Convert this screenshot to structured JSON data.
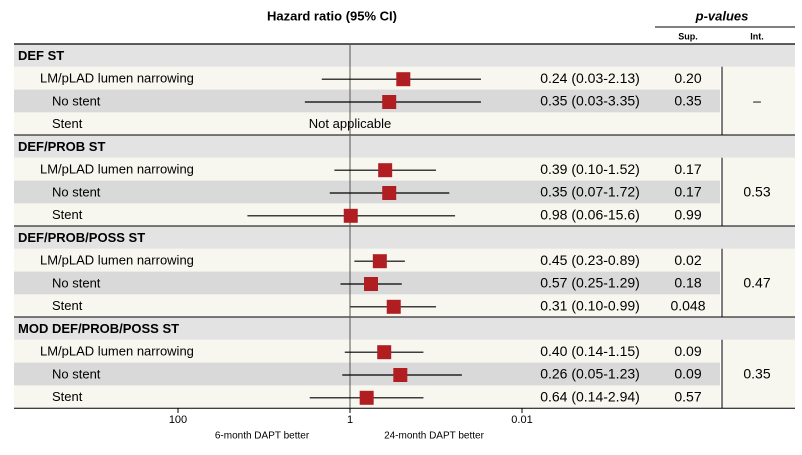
{
  "chart_data": {
    "type": "forest",
    "header": {
      "title": "Hazard ratio (95% CI)",
      "pvalues_title": "p-values",
      "sup": "Sup.",
      "int": "Int."
    },
    "axis": {
      "scale": "log",
      "reversed": true,
      "ticks": [
        {
          "value": 100,
          "label": "100"
        },
        {
          "value": 1,
          "label": "1"
        },
        {
          "value": 0.01,
          "label": "0.01"
        }
      ],
      "left_caption": "6-month DAPT better",
      "right_caption": "24-month DAPT better"
    },
    "groups": [
      {
        "label": "DEF ST",
        "p_int": "–",
        "rows": [
          {
            "label": "LM/pLAD lumen narrowing",
            "hr": 0.24,
            "lo": 0.03,
            "hi": 2.13,
            "text": "0.24 (0.03-2.13)",
            "p_sup": "0.20",
            "shaded": false
          },
          {
            "label": "No stent",
            "hr": 0.35,
            "lo": 0.03,
            "hi": 3.35,
            "text": "0.35 (0.03-3.35)",
            "p_sup": "0.35",
            "shaded": true
          },
          {
            "label": "Stent",
            "hr": null,
            "lo": null,
            "hi": null,
            "text": "",
            "p_sup": "",
            "note": "Not applicable",
            "shaded": false
          }
        ]
      },
      {
        "label": "DEF/PROB ST",
        "p_int": "0.53",
        "rows": [
          {
            "label": "LM/pLAD lumen narrowing",
            "hr": 0.39,
            "lo": 0.1,
            "hi": 1.52,
            "text": "0.39 (0.10-1.52)",
            "p_sup": "0.17",
            "shaded": false
          },
          {
            "label": "No stent",
            "hr": 0.35,
            "lo": 0.07,
            "hi": 1.72,
            "text": "0.35 (0.07-1.72)",
            "p_sup": "0.17",
            "shaded": true
          },
          {
            "label": "Stent",
            "hr": 0.98,
            "lo": 0.06,
            "hi": 15.6,
            "text": "0.98 (0.06-15.6)",
            "p_sup": "0.99",
            "shaded": false
          }
        ]
      },
      {
        "label": "DEF/PROB/POSS ST",
        "p_int": "0.47",
        "rows": [
          {
            "label": "LM/pLAD lumen narrowing",
            "hr": 0.45,
            "lo": 0.23,
            "hi": 0.89,
            "text": "0.45 (0.23-0.89)",
            "p_sup": "0.02",
            "shaded": false
          },
          {
            "label": "No stent",
            "hr": 0.57,
            "lo": 0.25,
            "hi": 1.29,
            "text": "0.57 (0.25-1.29)",
            "p_sup": "0.18",
            "shaded": true
          },
          {
            "label": "Stent",
            "hr": 0.31,
            "lo": 0.1,
            "hi": 0.99,
            "text": "0.31 (0.10-0.99)",
            "p_sup": "0.048",
            "shaded": false
          }
        ]
      },
      {
        "label": "MOD DEF/PROB/POSS ST",
        "p_int": "0.35",
        "rows": [
          {
            "label": "LM/pLAD lumen narrowing",
            "hr": 0.4,
            "lo": 0.14,
            "hi": 1.15,
            "text": "0.40 (0.14-1.15)",
            "p_sup": "0.09",
            "shaded": false
          },
          {
            "label": "No stent",
            "hr": 0.26,
            "lo": 0.05,
            "hi": 1.23,
            "text": "0.26 (0.05-1.23)",
            "p_sup": "0.09",
            "shaded": true
          },
          {
            "label": "Stent",
            "hr": 0.64,
            "lo": 0.14,
            "hi": 2.94,
            "text": "0.64 (0.14-2.94)",
            "p_sup": "0.57",
            "shaded": false
          }
        ]
      }
    ],
    "colors": {
      "marker": "#b11e22",
      "header_band": "#e3e3e3",
      "row_light": "#f7f6ef",
      "row_shaded": "#d9d9d9",
      "line": "#000000"
    }
  }
}
